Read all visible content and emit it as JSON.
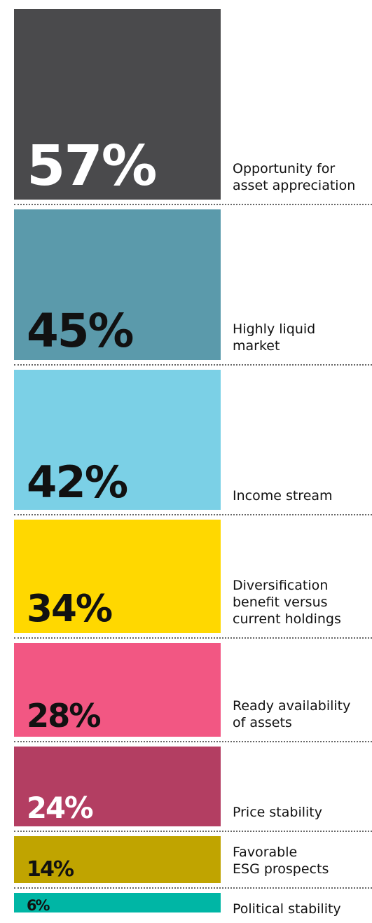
{
  "chart_data": {
    "type": "bar",
    "categories": [
      "Opportunity for\nasset appreciation",
      "Highly liquid\nmarket",
      "Income stream",
      "Diversification\nbenefit versus\ncurrent holdings",
      "Ready availability\nof assets",
      "Price stability",
      "Favorable\nESG prospects",
      "Political stability"
    ],
    "values": [
      57,
      45,
      42,
      34,
      28,
      24,
      14,
      6
    ],
    "value_labels": [
      "57%",
      "45%",
      "42%",
      "34%",
      "28%",
      "24%",
      "14%",
      "6%"
    ],
    "colors": [
      "#4a4a4c",
      "#5b9aab",
      "#7bd0e6",
      "#ffd800",
      "#f25783",
      "#b33e62",
      "#c0a400",
      "#00b6a5"
    ]
  }
}
